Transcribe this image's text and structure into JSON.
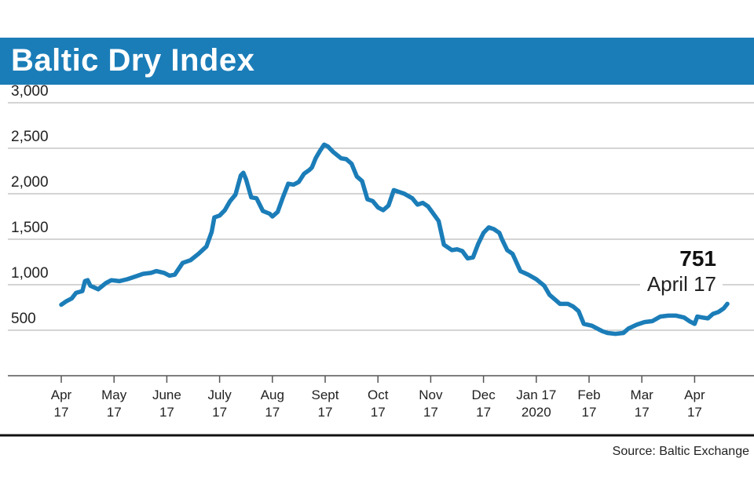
{
  "chart_data": {
    "type": "line",
    "title": "Baltic Dry Index",
    "source": "Source: Baltic Exchange",
    "ylim": [
      0,
      3000
    ],
    "y_ticks": [
      {
        "value": 500,
        "label": "500"
      },
      {
        "value": 1000,
        "label": "1,000"
      },
      {
        "value": 1500,
        "label": "1,500"
      },
      {
        "value": 2000,
        "label": "2,000"
      },
      {
        "value": 2500,
        "label": "2,500"
      },
      {
        "value": 3000,
        "label": "3,000"
      }
    ],
    "grid": true,
    "x_ticks": [
      {
        "label": [
          "Apr",
          "17"
        ],
        "month": 0
      },
      {
        "label": [
          "May",
          "17"
        ],
        "month": 1
      },
      {
        "label": [
          "June",
          "17"
        ],
        "month": 2
      },
      {
        "label": [
          "July",
          "17"
        ],
        "month": 3
      },
      {
        "label": [
          "Aug",
          "17"
        ],
        "month": 4
      },
      {
        "label": [
          "Sept",
          "17"
        ],
        "month": 5
      },
      {
        "label": [
          "Oct",
          "17"
        ],
        "month": 6
      },
      {
        "label": [
          "Nov",
          "17"
        ],
        "month": 7
      },
      {
        "label": [
          "Dec",
          "17"
        ],
        "month": 8
      },
      {
        "label": [
          "Jan 17",
          "2020"
        ],
        "month": 9
      },
      {
        "label": [
          "Feb",
          "17"
        ],
        "month": 10
      },
      {
        "label": [
          "Mar",
          "17"
        ],
        "month": 11
      },
      {
        "label": [
          "Apr",
          "17"
        ],
        "month": 12
      }
    ],
    "series": [
      {
        "color": "#1b7db8",
        "points": [
          [
            0.0,
            780
          ],
          [
            0.1,
            820
          ],
          [
            0.2,
            850
          ],
          [
            0.28,
            910
          ],
          [
            0.4,
            930
          ],
          [
            0.45,
            1040
          ],
          [
            0.5,
            1050
          ],
          [
            0.55,
            990
          ],
          [
            0.7,
            950
          ],
          [
            0.85,
            1020
          ],
          [
            0.95,
            1050
          ],
          [
            1.1,
            1040
          ],
          [
            1.25,
            1060
          ],
          [
            1.4,
            1090
          ],
          [
            1.55,
            1120
          ],
          [
            1.7,
            1130
          ],
          [
            1.8,
            1150
          ],
          [
            1.95,
            1130
          ],
          [
            2.05,
            1100
          ],
          [
            2.15,
            1110
          ],
          [
            2.3,
            1240
          ],
          [
            2.45,
            1270
          ],
          [
            2.6,
            1340
          ],
          [
            2.75,
            1420
          ],
          [
            2.85,
            1580
          ],
          [
            2.9,
            1740
          ],
          [
            3.0,
            1760
          ],
          [
            3.1,
            1820
          ],
          [
            3.2,
            1920
          ],
          [
            3.3,
            1990
          ],
          [
            3.4,
            2200
          ],
          [
            3.45,
            2230
          ],
          [
            3.5,
            2160
          ],
          [
            3.6,
            1960
          ],
          [
            3.7,
            1950
          ],
          [
            3.82,
            1810
          ],
          [
            3.95,
            1780
          ],
          [
            4.0,
            1750
          ],
          [
            4.1,
            1800
          ],
          [
            4.2,
            1960
          ],
          [
            4.3,
            2110
          ],
          [
            4.4,
            2100
          ],
          [
            4.5,
            2130
          ],
          [
            4.6,
            2220
          ],
          [
            4.7,
            2260
          ],
          [
            4.75,
            2290
          ],
          [
            4.82,
            2390
          ],
          [
            4.9,
            2470
          ],
          [
            4.98,
            2540
          ],
          [
            5.05,
            2520
          ],
          [
            5.15,
            2460
          ],
          [
            5.3,
            2390
          ],
          [
            5.4,
            2380
          ],
          [
            5.5,
            2330
          ],
          [
            5.6,
            2190
          ],
          [
            5.7,
            2140
          ],
          [
            5.8,
            1940
          ],
          [
            5.9,
            1920
          ],
          [
            6.0,
            1850
          ],
          [
            6.1,
            1820
          ],
          [
            6.2,
            1870
          ],
          [
            6.3,
            2040
          ],
          [
            6.4,
            2020
          ],
          [
            6.5,
            2000
          ],
          [
            6.65,
            1950
          ],
          [
            6.75,
            1880
          ],
          [
            6.85,
            1900
          ],
          [
            6.95,
            1860
          ],
          [
            7.05,
            1780
          ],
          [
            7.15,
            1700
          ],
          [
            7.25,
            1440
          ],
          [
            7.4,
            1380
          ],
          [
            7.5,
            1390
          ],
          [
            7.6,
            1370
          ],
          [
            7.7,
            1290
          ],
          [
            7.8,
            1300
          ],
          [
            7.9,
            1450
          ],
          [
            8.0,
            1570
          ],
          [
            8.1,
            1630
          ],
          [
            8.2,
            1610
          ],
          [
            8.3,
            1570
          ],
          [
            8.35,
            1500
          ],
          [
            8.45,
            1380
          ],
          [
            8.55,
            1340
          ],
          [
            8.7,
            1150
          ],
          [
            8.85,
            1110
          ],
          [
            9.0,
            1060
          ],
          [
            9.15,
            990
          ],
          [
            9.25,
            890
          ],
          [
            9.35,
            840
          ],
          [
            9.45,
            790
          ],
          [
            9.6,
            790
          ],
          [
            9.7,
            760
          ],
          [
            9.8,
            710
          ],
          [
            9.9,
            570
          ],
          [
            10.05,
            550
          ],
          [
            10.15,
            520
          ],
          [
            10.25,
            490
          ],
          [
            10.35,
            470
          ],
          [
            10.5,
            460
          ],
          [
            10.65,
            470
          ],
          [
            10.75,
            520
          ],
          [
            10.9,
            560
          ],
          [
            11.05,
            590
          ],
          [
            11.2,
            600
          ],
          [
            11.35,
            650
          ],
          [
            11.5,
            660
          ],
          [
            11.65,
            660
          ],
          [
            11.8,
            640
          ],
          [
            11.9,
            600
          ],
          [
            12.0,
            570
          ],
          [
            12.05,
            650
          ],
          [
            12.15,
            640
          ],
          [
            12.25,
            630
          ],
          [
            12.35,
            680
          ],
          [
            12.45,
            700
          ],
          [
            12.55,
            740
          ],
          [
            12.62,
            790
          ]
        ]
      }
    ],
    "annotation": {
      "value": "751",
      "label": "April 17"
    }
  }
}
